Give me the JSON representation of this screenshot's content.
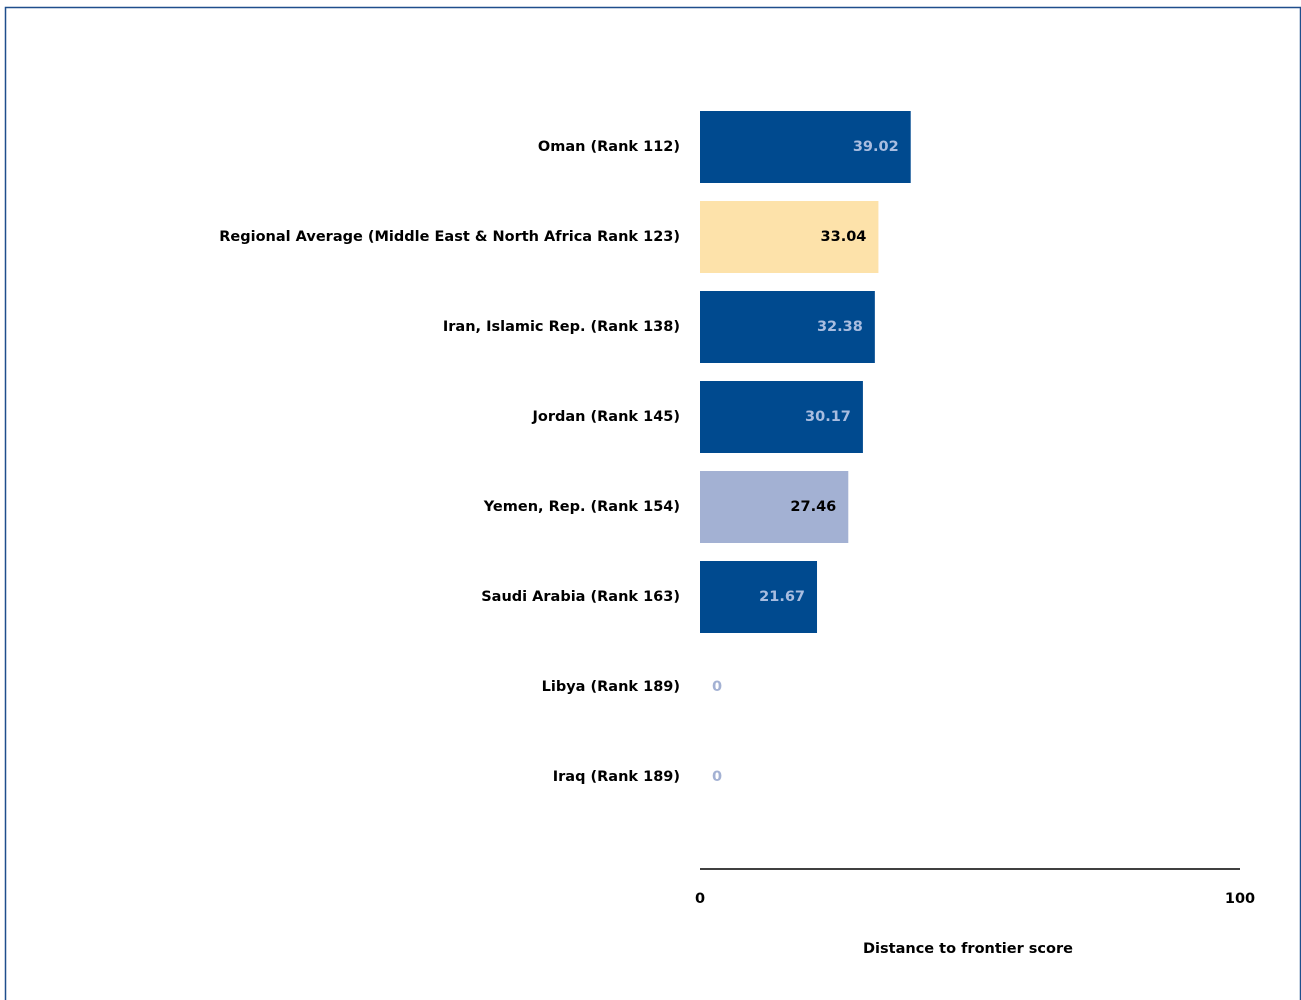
{
  "chart_data": {
    "type": "hbar",
    "categories": [
      "Oman (Rank 112)",
      "Regional Average (Middle East & North Africa Rank 123)",
      "Iran, Islamic Rep. (Rank 138)",
      "Jordan (Rank 145)",
      "Yemen, Rep. (Rank 154)",
      "Saudi Arabia (Rank 163)",
      "Libya (Rank 189)",
      "Iraq (Rank 189)"
    ],
    "values": [
      39.02,
      33.04,
      32.38,
      30.17,
      27.46,
      21.67,
      0,
      0
    ],
    "colors": [
      "#004a8f",
      "#fde2aa",
      "#004a8f",
      "#004a8f",
      "#a3b1d3",
      "#004a8f",
      "#a3b1d3",
      "#a3b1d3"
    ],
    "label_colors": [
      "#a9bde0",
      "#000000",
      "#a9bde0",
      "#a9bde0",
      "#000000",
      "#a9bde0",
      "#a3b1d3",
      "#a3b1d3"
    ],
    "xlim": [
      0,
      100
    ],
    "xticks": [
      0,
      100
    ],
    "xlabel": "Distance to frontier score"
  }
}
